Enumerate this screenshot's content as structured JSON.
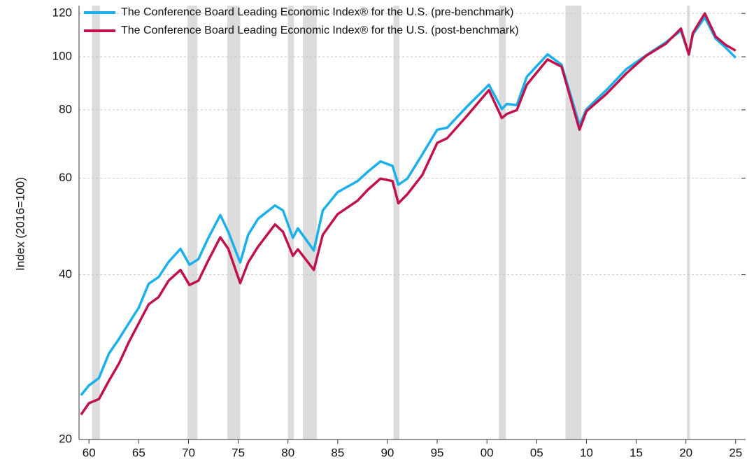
{
  "chart_data": {
    "type": "line",
    "y_label": "Index (2016=100)",
    "log_scale_y": true,
    "grid": true,
    "legend": "top-left",
    "xlim": [
      1959,
      2026
    ],
    "ylim": [
      20,
      124
    ],
    "yticks": [
      20,
      40,
      60,
      80,
      100,
      120
    ],
    "xticks": [
      {
        "value": 1960,
        "label": "60"
      },
      {
        "value": 1965,
        "label": "65"
      },
      {
        "value": 1970,
        "label": "70"
      },
      {
        "value": 1975,
        "label": "75"
      },
      {
        "value": 1980,
        "label": "80"
      },
      {
        "value": 1985,
        "label": "85"
      },
      {
        "value": 1990,
        "label": "90"
      },
      {
        "value": 1995,
        "label": "95"
      },
      {
        "value": 2000,
        "label": "00"
      },
      {
        "value": 2005,
        "label": "05"
      },
      {
        "value": 2010,
        "label": "10"
      },
      {
        "value": 2015,
        "label": "15"
      },
      {
        "value": 2020,
        "label": "20"
      },
      {
        "value": 2025,
        "label": "25"
      }
    ],
    "recessions": [
      [
        1960.3,
        1961.1
      ],
      [
        1969.9,
        1970.9
      ],
      [
        1973.9,
        1975.2
      ],
      [
        1980.0,
        1980.6
      ],
      [
        1981.5,
        1982.9
      ],
      [
        1990.6,
        1991.2
      ],
      [
        2001.2,
        2001.9
      ],
      [
        2007.9,
        2009.5
      ],
      [
        2020.1,
        2020.4
      ]
    ],
    "recession_color": "#dcdcdc",
    "x": [
      1959.2,
      1960,
      1961,
      1962,
      1963,
      1964,
      1965,
      1966,
      1967,
      1968,
      1969.2,
      1970.1,
      1971,
      1972,
      1973.2,
      1974,
      1975.2,
      1976,
      1977,
      1978.7,
      1979.5,
      1980.5,
      1981,
      1982.6,
      1983.5,
      1985,
      1987,
      1988,
      1989.3,
      1990.5,
      1991.1,
      1992,
      1993.5,
      1995,
      1996,
      1998,
      2000.2,
      2001.5,
      2002,
      2003,
      2004,
      2006.1,
      2007.5,
      2009.3,
      2010,
      2012,
      2014,
      2016,
      2018,
      2019.5,
      2020.3,
      2020.7,
      2021.9,
      2023,
      2024,
      2025
    ],
    "series": [
      {
        "name": "The Conference Board Leading Economic Index® for the U.S. (pre-benchmark)",
        "color": "#1ab0ec",
        "values": [
          24.1,
          25.1,
          25.9,
          28.7,
          30.5,
          32.6,
          34.8,
          38.5,
          39.6,
          42.2,
          44.6,
          41.7,
          42.7,
          46.7,
          51.4,
          47.9,
          42.1,
          47.3,
          50.6,
          53.5,
          52.4,
          46.7,
          48.6,
          44.3,
          52.4,
          56.6,
          59.3,
          61.6,
          64.4,
          63.2,
          58.4,
          59.9,
          66.3,
          73.6,
          74.2,
          81.1,
          88.9,
          80.3,
          82.0,
          81.6,
          91.9,
          101,
          96.7,
          75.0,
          80.2,
          86.9,
          94.9,
          100.6,
          106.3,
          111.6,
          100.9,
          109.8,
          118.0,
          107.9,
          103.9,
          99.6
        ]
      },
      {
        "name": "The Conference Board Leading Economic Index® for the U.S. (post-benchmark)",
        "color": "#c0114b",
        "values": [
          22.2,
          23.3,
          23.7,
          25.6,
          27.5,
          30.1,
          32.6,
          35.3,
          36.4,
          39.0,
          40.8,
          38.3,
          39.0,
          42.5,
          46.8,
          44.6,
          38.6,
          42.1,
          45.0,
          49.4,
          47.9,
          43.3,
          44.5,
          40.8,
          47.3,
          51.6,
          54.6,
          57.1,
          59.9,
          59.3,
          54.0,
          56.1,
          60.8,
          69.6,
          71.0,
          78.0,
          86.9,
          77.3,
          78.6,
          79.9,
          88.9,
          98.9,
          95.9,
          73.6,
          79.5,
          85.5,
          93.2,
          100.4,
          105.7,
          112.6,
          101.0,
          110.5,
          120.0,
          108.8,
          105.1,
          102.6
        ]
      }
    ]
  }
}
